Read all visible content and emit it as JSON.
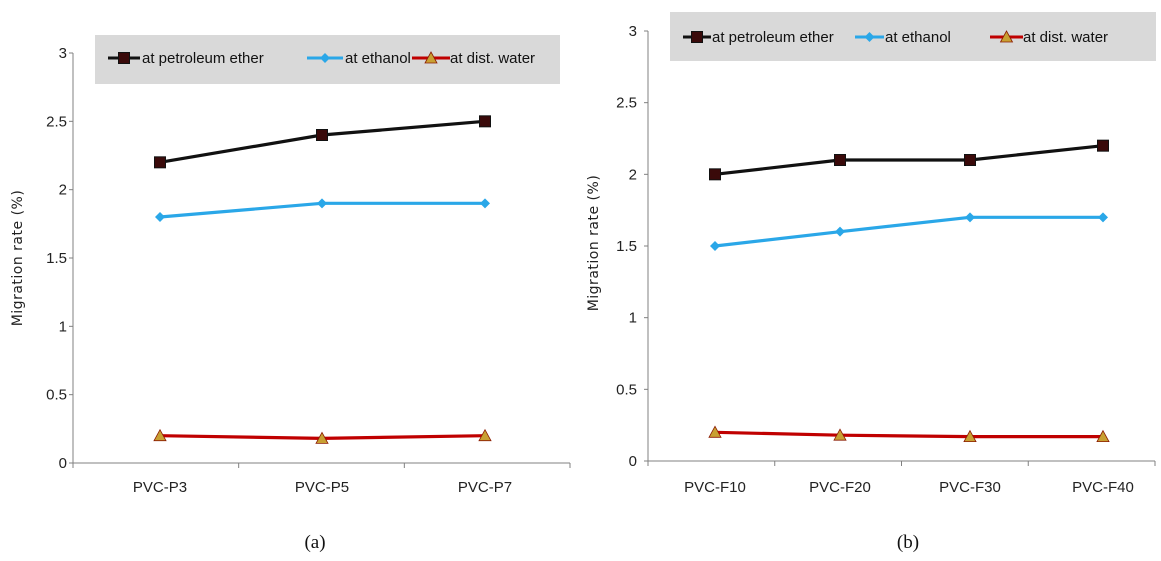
{
  "chart_data": [
    {
      "type": "line",
      "caption": "(a)",
      "title": "",
      "xlabel": "",
      "ylabel": "Migration rate (%)",
      "ylim": [
        0,
        3
      ],
      "yticks": [
        "0",
        "0.5",
        "1",
        "1.5",
        "2",
        "2.5",
        "3"
      ],
      "grid": false,
      "legend": "top",
      "categories": [
        "PVC-P3",
        "PVC-P5",
        "PVC-P7"
      ],
      "series": [
        {
          "name": "at petroleum ether",
          "marker": "square",
          "color": "#111111",
          "markerColor": "#3a0a0a",
          "values": [
            2.2,
            2.4,
            2.5
          ]
        },
        {
          "name": "at ethanol",
          "marker": "diamond",
          "color": "#2aa7e8",
          "markerColor": "#2aa7e8",
          "values": [
            1.8,
            1.9,
            1.9
          ]
        },
        {
          "name": "at dist. water",
          "marker": "triangle",
          "color": "#c00000",
          "markerColor": "#c8a032",
          "values": [
            0.2,
            0.18,
            0.2
          ]
        }
      ]
    },
    {
      "type": "line",
      "caption": "(b)",
      "title": "",
      "xlabel": "",
      "ylabel": "Migration rate (%)",
      "ylim": [
        0,
        3
      ],
      "yticks": [
        "0",
        "0.5",
        "1",
        "1.5",
        "2",
        "2.5",
        "3"
      ],
      "grid": false,
      "legend": "top",
      "categories": [
        "PVC-F10",
        "PVC-F20",
        "PVC-F30",
        "PVC-F40"
      ],
      "series": [
        {
          "name": "at petroleum ether",
          "marker": "square",
          "color": "#111111",
          "markerColor": "#3a0a0a",
          "values": [
            2.0,
            2.1,
            2.1,
            2.2
          ]
        },
        {
          "name": "at ethanol",
          "marker": "diamond",
          "color": "#2aa7e8",
          "markerColor": "#2aa7e8",
          "values": [
            1.5,
            1.6,
            1.7,
            1.7
          ]
        },
        {
          "name": "at dist. water",
          "marker": "triangle",
          "color": "#c00000",
          "markerColor": "#c8a032",
          "values": [
            0.2,
            0.18,
            0.17,
            0.17
          ]
        }
      ]
    }
  ]
}
